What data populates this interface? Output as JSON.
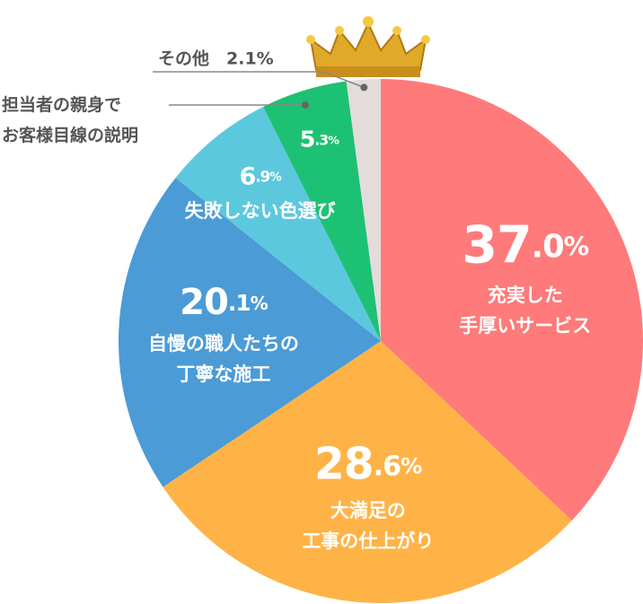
{
  "chart_data": {
    "type": "pie",
    "categories": [
      "充実した\n手厚いサービス",
      "大満足の\n工事の仕上がり",
      "自慢の職人たちの\n丁寧な施工",
      "失敗しない色選び",
      "担当者の親身で\nお客様目線の説明",
      "その他"
    ],
    "values": [
      37.0,
      28.6,
      20.1,
      6.9,
      5.3,
      2.1
    ],
    "value_labels": [
      "37.0%",
      "28.6%",
      "20.1%",
      "6.9%",
      "5.3%",
      "2.1%"
    ],
    "colors": [
      "#ff7a7a",
      "#ffb347",
      "#4b9bd6",
      "#5cc8dd",
      "#1dc174",
      "#e2dcdb"
    ]
  }
}
